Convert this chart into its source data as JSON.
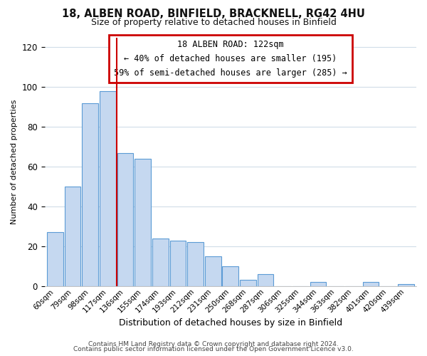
{
  "title1": "18, ALBEN ROAD, BINFIELD, BRACKNELL, RG42 4HU",
  "title2": "Size of property relative to detached houses in Binfield",
  "xlabel": "Distribution of detached houses by size in Binfield",
  "ylabel": "Number of detached properties",
  "footnote1": "Contains HM Land Registry data © Crown copyright and database right 2024.",
  "footnote2": "Contains public sector information licensed under the Open Government Licence v3.0.",
  "bar_labels": [
    "60sqm",
    "79sqm",
    "98sqm",
    "117sqm",
    "136sqm",
    "155sqm",
    "174sqm",
    "193sqm",
    "212sqm",
    "231sqm",
    "250sqm",
    "268sqm",
    "287sqm",
    "306sqm",
    "325sqm",
    "344sqm",
    "363sqm",
    "382sqm",
    "401sqm",
    "420sqm",
    "439sqm"
  ],
  "bar_values": [
    27,
    50,
    92,
    98,
    67,
    64,
    24,
    23,
    22,
    15,
    10,
    3,
    6,
    0,
    0,
    2,
    0,
    0,
    2,
    0,
    1
  ],
  "bar_color": "#c5d8f0",
  "bar_edge_color": "#5b9bd5",
  "ylim": [
    0,
    125
  ],
  "yticks": [
    0,
    20,
    40,
    60,
    80,
    100,
    120
  ],
  "vline_color": "#cc0000",
  "vline_x_index": 3.5,
  "annotation_title": "18 ALBEN ROAD: 122sqm",
  "annotation_line1": "← 40% of detached houses are smaller (195)",
  "annotation_line2": "59% of semi-detached houses are larger (285) →",
  "annotation_box_color": "#cc0000",
  "background_color": "#ffffff",
  "plot_bg_color": "#ffffff",
  "grid_color": "#d0dce8",
  "title1_fontsize": 10.5,
  "title2_fontsize": 9
}
